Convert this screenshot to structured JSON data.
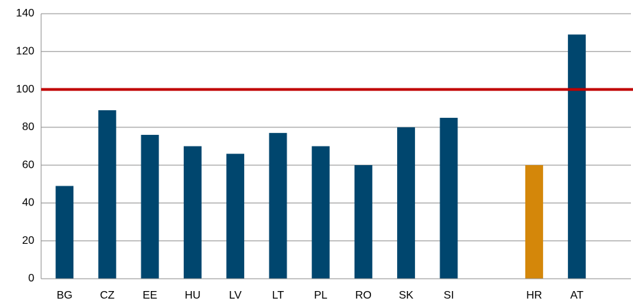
{
  "chart_data": {
    "type": "bar",
    "categories": [
      "BG",
      "CZ",
      "EE",
      "HU",
      "LV",
      "LT",
      "PL",
      "RO",
      "SK",
      "SI",
      null,
      "HR",
      "AT"
    ],
    "values": [
      49,
      89,
      76,
      70,
      66,
      77,
      70,
      60,
      80,
      85,
      null,
      60,
      129
    ],
    "colors": [
      "#00466e",
      "#00466e",
      "#00466e",
      "#00466e",
      "#00466e",
      "#00466e",
      "#00466e",
      "#00466e",
      "#00466e",
      "#00466e",
      null,
      "#d4870a",
      "#00466e"
    ],
    "ylim": [
      0,
      140
    ],
    "yticks": [
      0,
      20,
      40,
      60,
      80,
      100,
      120,
      140
    ],
    "grid": true,
    "reference_line": {
      "value": 100,
      "color": "#c00000"
    }
  }
}
